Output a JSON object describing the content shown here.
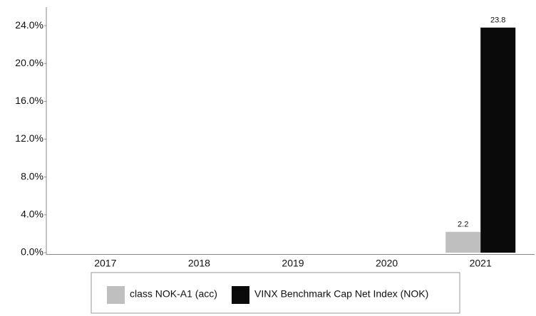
{
  "chart_data": {
    "type": "bar",
    "categories": [
      "2017",
      "2018",
      "2019",
      "2020",
      "2021"
    ],
    "series": [
      {
        "name": "class NOK-A1 (acc)",
        "color": "#bfbfbf",
        "values": [
          null,
          null,
          null,
          null,
          2.2
        ]
      },
      {
        "name": "VINX Benchmark Cap Net Index (NOK)",
        "color": "#0a0a0a",
        "values": [
          null,
          null,
          null,
          null,
          23.8
        ]
      }
    ],
    "ylim": [
      0,
      26
    ],
    "yticks": [
      {
        "value": 0,
        "label": "0.0%"
      },
      {
        "value": 4,
        "label": "4.0%"
      },
      {
        "value": 8,
        "label": "8.0%"
      },
      {
        "value": 12,
        "label": "12.0%"
      },
      {
        "value": 16,
        "label": "16.0%"
      },
      {
        "value": 20,
        "label": "20.0%"
      },
      {
        "value": 24,
        "label": "24.0%"
      }
    ],
    "grid": false
  }
}
